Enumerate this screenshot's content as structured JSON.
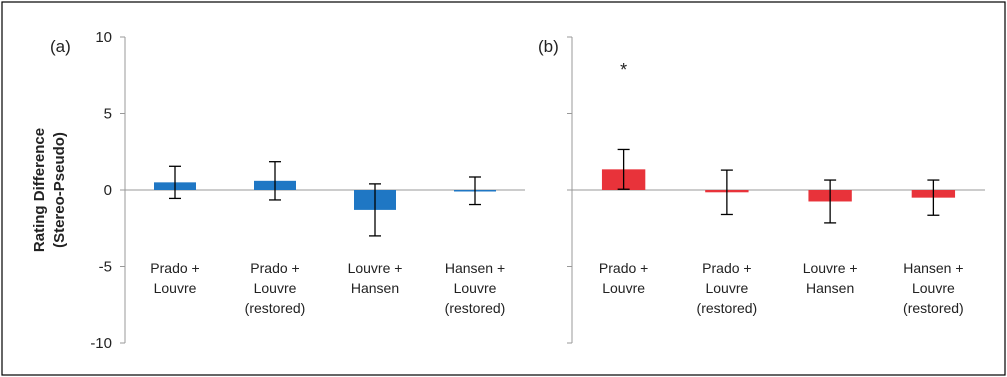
{
  "chart_data": {
    "type": "bar",
    "ylabel": "Rating Difference (Stereo-Pseudo)",
    "ylabel_lines": [
      "Rating Difference",
      "(Stereo-Pseudo)"
    ],
    "ylim": [
      -10,
      10
    ],
    "yticks": [
      10,
      5,
      0,
      -5,
      -10
    ],
    "panels": [
      {
        "label": "(a)",
        "color": "#1f77c4",
        "categories": [
          [
            "Prado +",
            "Louvre"
          ],
          [
            "Prado +",
            "Louvre",
            "(restored)"
          ],
          [
            "Louvre +",
            "Hansen"
          ],
          [
            "Hansen +",
            "Louvre",
            "(restored)"
          ]
        ],
        "values": [
          0.5,
          0.6,
          -1.3,
          -0.05
        ],
        "errors": [
          1.05,
          1.25,
          1.7,
          0.9
        ],
        "annotations": [
          "",
          "",
          "",
          ""
        ]
      },
      {
        "label": "(b)",
        "color": "#e8333a",
        "categories": [
          [
            "Prado +",
            "Louvre"
          ],
          [
            "Prado +",
            "Louvre",
            "(restored)"
          ],
          [
            "Louvre +",
            "Hansen"
          ],
          [
            "Hansen +",
            "Louvre",
            "(restored)"
          ]
        ],
        "values": [
          1.35,
          -0.15,
          -0.75,
          -0.5
        ],
        "errors": [
          1.3,
          1.45,
          1.4,
          1.15
        ],
        "annotations": [
          "*",
          "",
          "",
          ""
        ]
      }
    ]
  }
}
